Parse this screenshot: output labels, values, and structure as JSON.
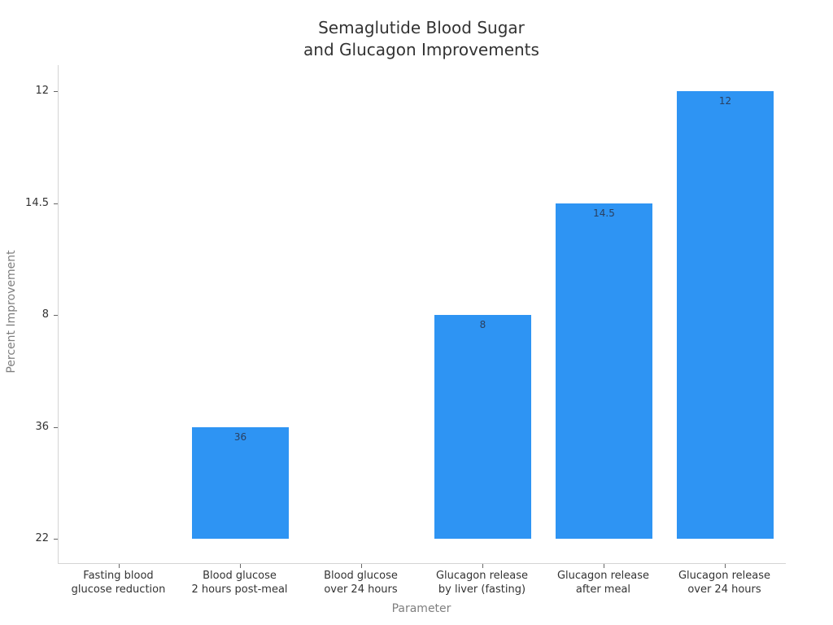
{
  "chart_data": {
    "type": "bar",
    "title": "Semaglutide Blood Sugar and Glucagon Improvements",
    "title_lines": [
      "Semaglutide Blood Sugar",
      "and Glucagon Improvements"
    ],
    "xlabel": "Parameter",
    "ylabel": "Percent Improvement",
    "y_axis_type": "category",
    "y_ticks_bottom_to_top": [
      "22",
      "36",
      "8",
      "14.5",
      "12"
    ],
    "categories_lines": [
      [
        "Fasting blood",
        "glucose reduction"
      ],
      [
        "Blood glucose",
        "2 hours post-meal"
      ],
      [
        "Blood glucose",
        "over 24 hours"
      ],
      [
        "Glucagon release",
        "by liver (fasting)"
      ],
      [
        "Glucagon release",
        "after meal"
      ],
      [
        "Glucagon release",
        "over 24 hours"
      ]
    ],
    "values": [
      "22",
      "36",
      "22",
      "8",
      "14.5",
      "12"
    ],
    "bar_labels": [
      "",
      "36",
      "",
      "8",
      "14.5",
      "12"
    ],
    "legend": "none",
    "grid": false,
    "colors": {
      "bar_fill": "#2E94F3",
      "bar_label_text": "#2a3f5f",
      "axis_line": "#d4d4d4",
      "tick_mark": "#666666",
      "tick_text": "#333333",
      "axis_title_text": "#7f7f7f",
      "title_text": "#333333",
      "background": "#ffffff"
    }
  }
}
